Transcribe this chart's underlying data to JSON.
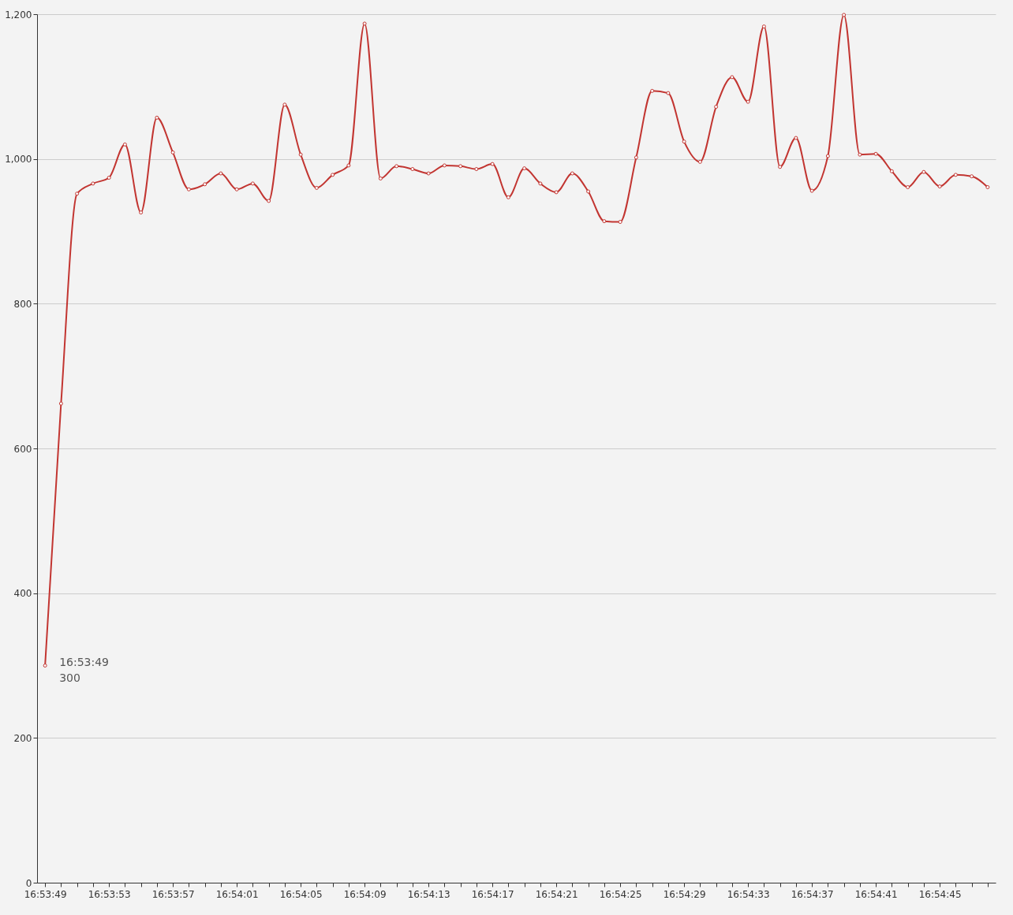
{
  "chart_data": {
    "type": "line",
    "categories": [
      "16:53:49",
      null,
      null,
      null,
      "16:53:53",
      null,
      null,
      null,
      "16:53:57",
      null,
      null,
      null,
      "16:54:01",
      null,
      null,
      null,
      "16:54:05",
      null,
      null,
      null,
      "16:54:09",
      null,
      null,
      null,
      "16:54:13",
      null,
      null,
      null,
      "16:54:17",
      null,
      null,
      null,
      "16:54:21",
      null,
      null,
      null,
      "16:54:25",
      null,
      null,
      null,
      "16:54:29",
      null,
      null,
      null,
      "16:54:33",
      null,
      null,
      null,
      "16:54:37",
      null,
      null,
      null,
      "16:54:41",
      null,
      null,
      null,
      "16:54:45",
      null,
      null,
      null
    ],
    "series": [
      {
        "color": "#c23531",
        "values": [
          300,
          662,
          952,
          966,
          974,
          1020,
          926,
          1057,
          1009,
          958,
          965,
          980,
          958,
          966,
          942,
          1075,
          1006,
          960,
          978,
          991,
          1187,
          973,
          990,
          986,
          980,
          991,
          990,
          986,
          993,
          947,
          987,
          966,
          954,
          980,
          955,
          914,
          913,
          1002,
          1094,
          1091,
          1024,
          996,
          1072,
          1113,
          1079,
          1183,
          989,
          1029,
          956,
          1004,
          1199,
          1006,
          1007,
          983,
          961,
          982,
          962,
          978,
          976,
          961
        ]
      }
    ],
    "ylim": [
      0,
      1200
    ],
    "yticks": [
      0,
      200,
      400,
      600,
      800,
      {
        "value": 1000,
        "label": "1,000"
      },
      {
        "value": 1200,
        "label": "1,200"
      }
    ],
    "grid": "y",
    "marker": "circle",
    "line_style": "solid",
    "annotations": [
      {
        "text": "16:53:49\n300",
        "x": "16:53:49",
        "y": 300
      }
    ]
  }
}
